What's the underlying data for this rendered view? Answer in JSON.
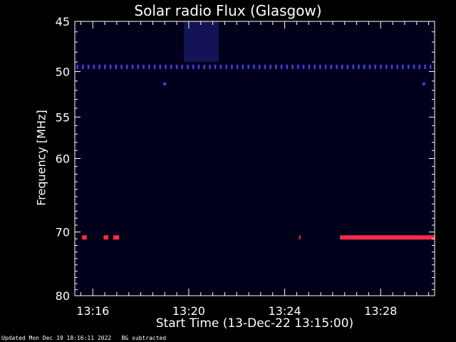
{
  "chart_data": {
    "type": "heatmap",
    "title": "Solar radio Flux (Glasgow)",
    "xlabel": "Start Time (13-Dec-22 13:15:00)",
    "ylabel": "Frequency [MHz]",
    "x_ticks": [
      "13:16",
      "13:20",
      "13:24",
      "13:28"
    ],
    "x_tick_minutes": [
      1,
      5,
      9,
      13
    ],
    "xlim_minutes": [
      0.25,
      15.25
    ],
    "y_ticks": [
      "45",
      "50",
      "55",
      "60",
      "70",
      "80"
    ],
    "y_tick_values": [
      45,
      50,
      55,
      60,
      70,
      80
    ],
    "ylim": [
      45,
      80
    ],
    "y_scale": "log",
    "grid": false,
    "features": [
      {
        "name": "blue dotted band",
        "frequency": 49.5,
        "start_minutes": 0.25,
        "end_minutes": 15.25,
        "color": "#3f3fff"
      },
      {
        "name": "red band",
        "frequency": 70.8,
        "segments": [
          [
            0.55,
            0.75
          ],
          [
            1.45,
            1.65
          ],
          [
            1.85,
            2.1
          ],
          [
            9.6,
            9.65
          ],
          [
            11.3,
            15.25
          ]
        ],
        "color": "#ff2a4a"
      },
      {
        "name": "blue patch",
        "frequency_range": [
          45,
          49
        ],
        "start_minutes": 4.8,
        "end_minutes": 6.25,
        "color": "#2a2aa0"
      },
      {
        "name": "blue dots",
        "points": [
          [
            4.0,
            51.3
          ],
          [
            14.8,
            51.3
          ]
        ],
        "color": "#3f3fff"
      }
    ]
  },
  "footer": "Updated Mon Dec 19 18:16:11 2022   BG subtracted"
}
